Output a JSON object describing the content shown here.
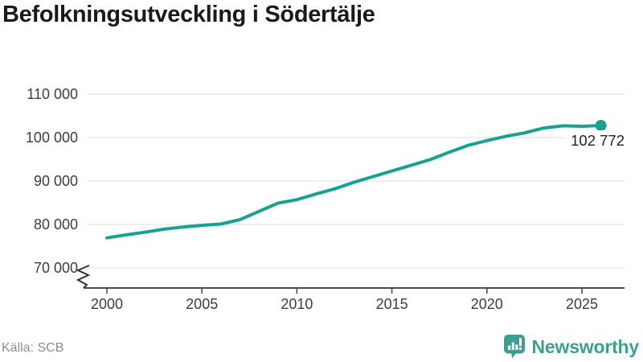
{
  "page": {
    "title": "Befolkningsutveckling i Södertälje",
    "source": "Källa: SCB"
  },
  "brand": {
    "name": "Newsworthy",
    "color": "#3BA08F",
    "icon": "bar-chart-marker-icon"
  },
  "colors": {
    "line": "#16A194",
    "grid": "#E3E3E3",
    "axis": "#4D4D4D",
    "tick_label": "#3D3D3D",
    "title": "#1A1A1A",
    "source": "#8C8C8C",
    "end_label": "#222222",
    "background": "#FFFFFF"
  },
  "chart_data": {
    "type": "line",
    "title": "Befolkningsutveckling i Södertälje",
    "xlabel": "",
    "ylabel": "",
    "legend": "none",
    "grid": "horizontal",
    "axis_break_bottom": true,
    "x": [
      2000,
      2001,
      2002,
      2003,
      2004,
      2005,
      2006,
      2007,
      2008,
      2009,
      2010,
      2011,
      2012,
      2013,
      2014,
      2015,
      2016,
      2017,
      2018,
      2019,
      2020,
      2021,
      2022,
      2023,
      2024,
      2025,
      2026
    ],
    "values": [
      76900,
      77600,
      78200,
      78900,
      79400,
      79800,
      80100,
      81100,
      83000,
      84900,
      85700,
      87000,
      88200,
      89700,
      91000,
      92300,
      93600,
      94900,
      96600,
      98200,
      99300,
      100300,
      101100,
      102200,
      102700,
      102600,
      102772
    ],
    "end_label": "102 772",
    "yticks": {
      "values": [
        70000,
        80000,
        90000,
        100000,
        110000
      ],
      "labels": [
        "70 000",
        "80 000",
        "90 000",
        "100 000",
        "110 000"
      ]
    },
    "xticks": {
      "values": [
        2000,
        2005,
        2010,
        2015,
        2020,
        2025
      ],
      "labels": [
        "2000",
        "2005",
        "2010",
        "2015",
        "2020",
        "2025"
      ]
    },
    "ylim": [
      70000,
      113000
    ],
    "xlim": [
      2000,
      2027
    ]
  }
}
